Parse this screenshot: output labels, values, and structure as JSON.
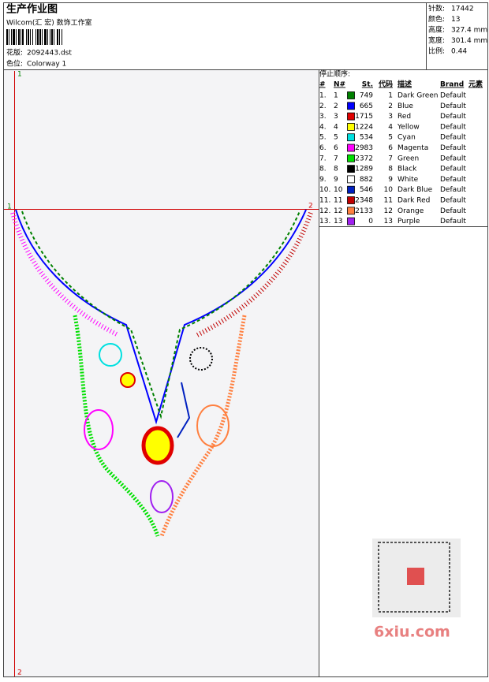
{
  "header": {
    "title": "生产作业图",
    "company": "Wilcom(汇 宏) 数饰工作室",
    "design_label": "花版:",
    "design_file": "2092443.dst",
    "colorway_label": "色位:",
    "colorway": "Colorway 1"
  },
  "stats": [
    {
      "label": "针数:",
      "value": "17442"
    },
    {
      "label": "颜色:",
      "value": "13"
    },
    {
      "label": "高度:",
      "value": "327.4 mm"
    },
    {
      "label": "宽度:",
      "value": "301.4 mm"
    },
    {
      "label": "比例:",
      "value": "0.44"
    }
  ],
  "table": {
    "title": "停止顺序:",
    "columns": [
      "#",
      "N#",
      "St.",
      "代码",
      "描述",
      "Brand",
      "元素"
    ],
    "rows": [
      {
        "index": "1.",
        "needle": "1",
        "color": "#008000",
        "stitches": 749,
        "code": "1",
        "name": "Dark Green",
        "brand": "Default"
      },
      {
        "index": "2.",
        "needle": "2",
        "color": "#0000ff",
        "stitches": 665,
        "code": "2",
        "name": "Blue",
        "brand": "Default"
      },
      {
        "index": "3.",
        "needle": "3",
        "color": "#e00000",
        "stitches": 1715,
        "code": "3",
        "name": "Red",
        "brand": "Default"
      },
      {
        "index": "4.",
        "needle": "4",
        "color": "#ffff00",
        "stitches": 1224,
        "code": "4",
        "name": "Yellow",
        "brand": "Default"
      },
      {
        "index": "5.",
        "needle": "5",
        "color": "#00e0e0",
        "stitches": 534,
        "code": "5",
        "name": "Cyan",
        "brand": "Default"
      },
      {
        "index": "6.",
        "needle": "6",
        "color": "#ff00ff",
        "stitches": 2983,
        "code": "6",
        "name": "Magenta",
        "brand": "Default"
      },
      {
        "index": "7.",
        "needle": "7",
        "color": "#00e000",
        "stitches": 2372,
        "code": "7",
        "name": "Green",
        "brand": "Default"
      },
      {
        "index": "8.",
        "needle": "8",
        "color": "#000000",
        "stitches": 1289,
        "code": "8",
        "name": "Black",
        "brand": "Default"
      },
      {
        "index": "9.",
        "needle": "9",
        "color": "#ffffff",
        "stitches": 882,
        "code": "9",
        "name": "White",
        "brand": "Default"
      },
      {
        "index": "10.",
        "needle": "10",
        "color": "#0020c0",
        "stitches": 546,
        "code": "10",
        "name": "Dark Blue",
        "brand": "Default"
      },
      {
        "index": "11.",
        "needle": "11",
        "color": "#c00000",
        "stitches": 2348,
        "code": "11",
        "name": "Dark Red",
        "brand": "Default"
      },
      {
        "index": "12.",
        "needle": "12",
        "color": "#ff8040",
        "stitches": 2133,
        "code": "12",
        "name": "Orange",
        "brand": "Default"
      },
      {
        "index": "13.",
        "needle": "13",
        "color": "#a020f0",
        "stitches": 0,
        "code": "13",
        "name": "Purple",
        "brand": "Default"
      }
    ]
  },
  "markers": {
    "left": "1",
    "right": "2",
    "top": "1",
    "bottom": "2"
  },
  "watermark": {
    "text": "6xiu.com"
  }
}
